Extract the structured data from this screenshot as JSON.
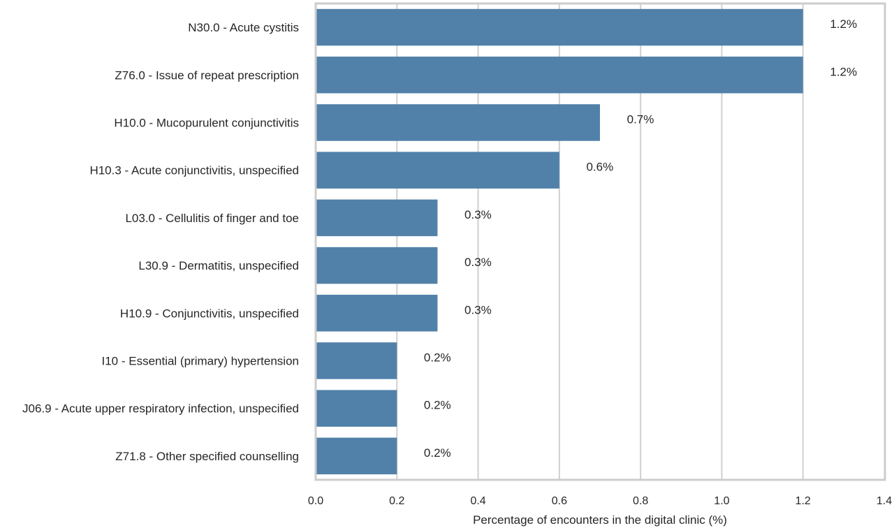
{
  "chart_data": {
    "type": "bar",
    "orientation": "horizontal",
    "categories": [
      "N30.0 - Acute cystitis",
      "Z76.0 - Issue of repeat prescription",
      "H10.0 - Mucopurulent conjunctivitis",
      "H10.3 - Acute conjunctivitis, unspecified",
      "L03.0 - Cellulitis of finger and toe",
      "L30.9 - Dermatitis, unspecified",
      "H10.9 - Conjunctivitis, unspecified",
      "I10 - Essential (primary) hypertension",
      "J06.9 - Acute upper respiratory infection, unspecified",
      "Z71.8 - Other specified counselling"
    ],
    "values": [
      1.2,
      1.2,
      0.7,
      0.6,
      0.3,
      0.3,
      0.3,
      0.2,
      0.2,
      0.2
    ],
    "data_labels": [
      "1.2%",
      "1.2%",
      "0.7%",
      "0.6%",
      "0.3%",
      "0.3%",
      "0.3%",
      "0.2%",
      "0.2%",
      "0.2%"
    ],
    "xlabel": "Percentage of encounters in the digital clinic (%)",
    "ylabel": "",
    "xlim": [
      0,
      1.4
    ],
    "xticks": [
      0.0,
      0.2,
      0.4,
      0.6,
      0.8,
      1.0,
      1.2,
      1.4
    ],
    "xtick_labels": [
      "0.0",
      "0.2",
      "0.4",
      "0.6",
      "0.8",
      "1.0",
      "1.2",
      "1.4"
    ],
    "grid": "vertical",
    "bar_color": "#5181a9"
  }
}
